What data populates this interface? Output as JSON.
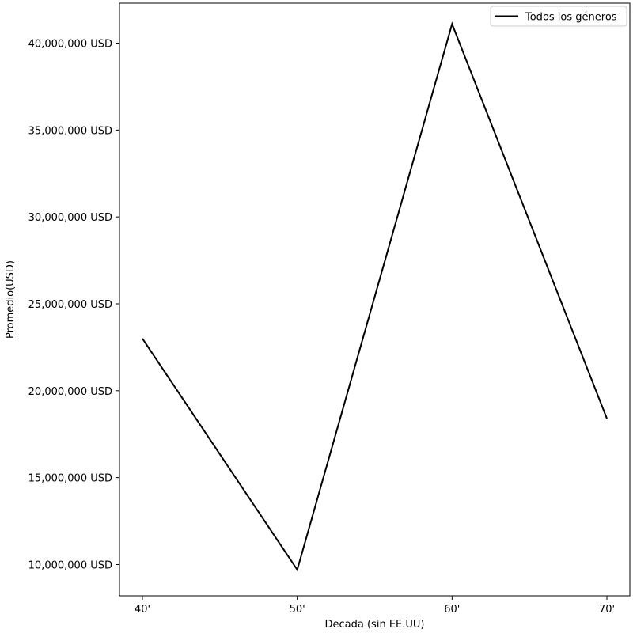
{
  "chart_data": {
    "type": "line",
    "title": "",
    "xlabel": "Decada (sin EE.UU)",
    "ylabel": "Promedio(USD)",
    "categories": [
      "40'",
      "50'",
      "60'",
      "70'"
    ],
    "series": [
      {
        "name": "Todos los géneros",
        "values": [
          23000000,
          9700000,
          41100000,
          18400000
        ],
        "color": "#000000"
      }
    ],
    "ylim": [
      8200000,
      42300000
    ],
    "yticks": [
      10000000,
      15000000,
      20000000,
      25000000,
      30000000,
      35000000,
      40000000
    ],
    "ytick_labels": [
      "10,000,000 USD",
      "15,000,000 USD",
      "20,000,000 USD",
      "25,000,000 USD",
      "30,000,000 USD",
      "35,000,000 USD",
      "40,000,000 USD"
    ],
    "grid": false,
    "legend_position": "top-right"
  }
}
